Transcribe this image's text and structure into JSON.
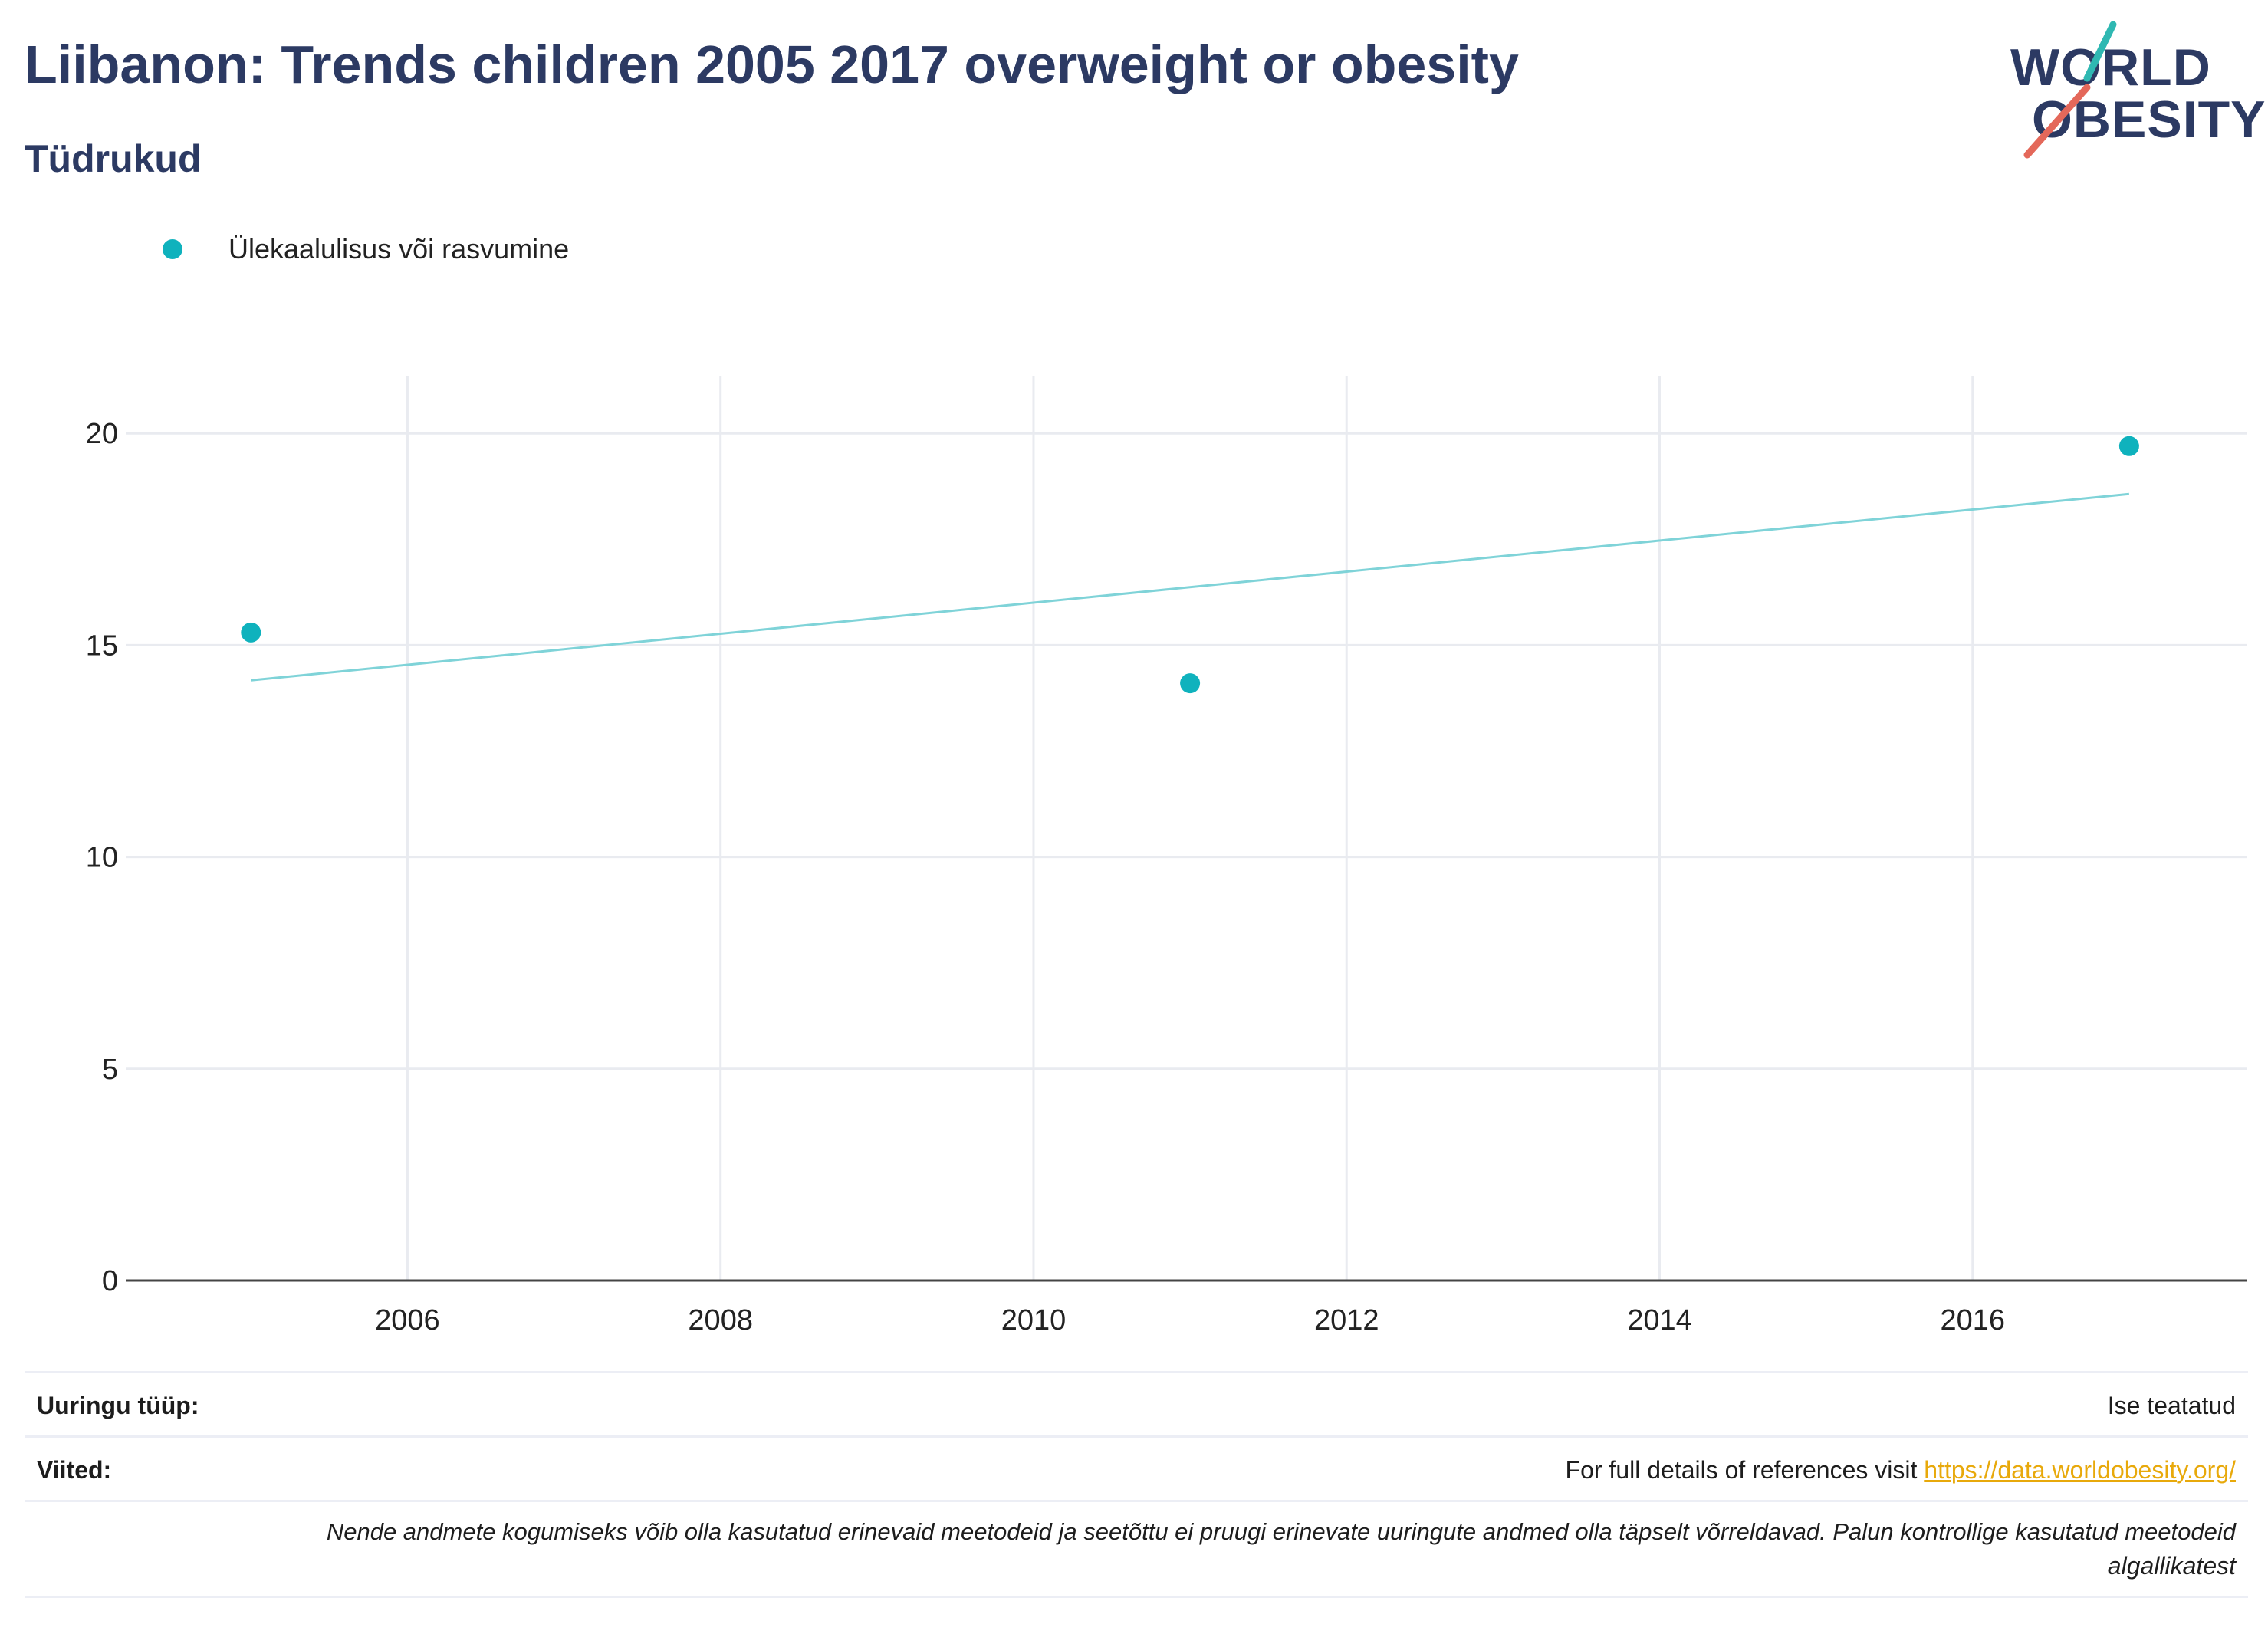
{
  "header": {
    "title": "Liibanon: Trends children 2005 2017 overweight or obesity",
    "subtitle": "Tüdrukud"
  },
  "logo": {
    "line1": "WORLD",
    "line2": "OBESITY",
    "icon": "world-obesity-slash-logo",
    "colors": {
      "text": "#2c3a63",
      "slash_top": "#2fb8b2",
      "slash_bottom": "#e4685a"
    }
  },
  "chart_data": {
    "type": "scatter",
    "series": [
      {
        "name": "Ülekaalulisus või rasvumine",
        "x": [
          2005,
          2011,
          2017
        ],
        "values": [
          15.3,
          14.1,
          19.7
        ],
        "color": "#0fb2bd"
      }
    ],
    "trendline": {
      "x": [
        2005,
        2017
      ],
      "values": [
        14.17,
        18.57
      ],
      "color": "#7fd3d8"
    },
    "xlim": [
      2004.2,
      2017.75
    ],
    "ylim": [
      0,
      21
    ],
    "x_ticks": [
      2006,
      2008,
      2010,
      2012,
      2014,
      2016
    ],
    "y_ticks": [
      0,
      5,
      10,
      15,
      20
    ],
    "grid": true,
    "legend": "top-left",
    "xlabel": "",
    "ylabel": ""
  },
  "info": {
    "survey_type_label": "Uuringu tüüp:",
    "survey_type_value": "Ise teatatud",
    "references_label": "Viited:",
    "references_text": "For full details of references visit ",
    "references_link": "https://data.worldobesity.org/",
    "note_line1": "Nende andmete kogumiseks võib olla kasutatud erinevaid meetodeid ja seetõttu ei pruugi erinevate uuringute andmed olla täpselt võrreldavad. Palun kontrollige kasutatud meetodeid",
    "note_line2": "algallikatest"
  }
}
